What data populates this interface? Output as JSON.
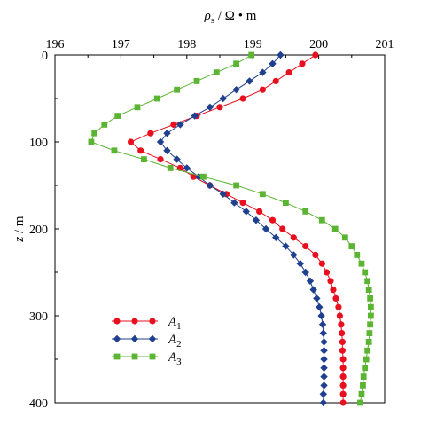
{
  "chart_data": {
    "type": "line",
    "title": "",
    "xlabel": {
      "base": "ρ",
      "sub": "s",
      "rest": " / Ω • m"
    },
    "ylabel": {
      "italic": "z",
      "rest": " / m"
    },
    "xlim": [
      196,
      201
    ],
    "ylim": [
      0,
      400
    ],
    "x_axis_position": "top",
    "y_reversed": true,
    "grid": false,
    "legend_position": "lower-left",
    "x_ticks": [
      "196",
      "197",
      "198",
      "199",
      "200",
      "201"
    ],
    "y_ticks": [
      "0",
      "100",
      "200",
      "300",
      "400"
    ],
    "series": [
      {
        "name": "A1",
        "name_main": "A",
        "name_sub": "1",
        "color": "#e8101e",
        "marker": "circle",
        "points": [
          [
            199.95,
            0
          ],
          [
            199.75,
            10
          ],
          [
            199.55,
            20
          ],
          [
            199.35,
            30
          ],
          [
            199.15,
            40
          ],
          [
            198.85,
            50
          ],
          [
            198.5,
            60
          ],
          [
            198.15,
            70
          ],
          [
            197.8,
            80
          ],
          [
            197.45,
            90
          ],
          [
            197.15,
            100
          ],
          [
            197.3,
            110
          ],
          [
            197.6,
            120
          ],
          [
            197.9,
            130
          ],
          [
            198.1,
            140
          ],
          [
            198.35,
            150
          ],
          [
            198.6,
            160
          ],
          [
            198.85,
            170
          ],
          [
            199.1,
            180
          ],
          [
            199.3,
            190
          ],
          [
            199.45,
            200
          ],
          [
            199.62,
            210
          ],
          [
            199.8,
            220
          ],
          [
            199.95,
            230
          ],
          [
            200.05,
            240
          ],
          [
            200.12,
            250
          ],
          [
            200.18,
            260
          ],
          [
            200.22,
            270
          ],
          [
            200.26,
            280
          ],
          [
            200.3,
            290
          ],
          [
            200.32,
            300
          ],
          [
            200.34,
            310
          ],
          [
            200.35,
            320
          ],
          [
            200.36,
            330
          ],
          [
            200.36,
            340
          ],
          [
            200.37,
            350
          ],
          [
            200.37,
            360
          ],
          [
            200.37,
            370
          ],
          [
            200.37,
            380
          ],
          [
            200.37,
            390
          ],
          [
            200.37,
            400
          ]
        ]
      },
      {
        "name": "A2",
        "name_main": "A",
        "name_sub": "2",
        "color": "#1f3f8f",
        "marker": "diamond",
        "points": [
          [
            199.42,
            0
          ],
          [
            199.3,
            10
          ],
          [
            199.15,
            20
          ],
          [
            198.95,
            30
          ],
          [
            198.75,
            40
          ],
          [
            198.55,
            50
          ],
          [
            198.35,
            60
          ],
          [
            198.12,
            70
          ],
          [
            197.9,
            80
          ],
          [
            197.7,
            90
          ],
          [
            197.6,
            100
          ],
          [
            197.7,
            110
          ],
          [
            197.85,
            120
          ],
          [
            198.0,
            130
          ],
          [
            198.18,
            140
          ],
          [
            198.35,
            150
          ],
          [
            198.55,
            160
          ],
          [
            198.72,
            170
          ],
          [
            198.9,
            180
          ],
          [
            199.05,
            190
          ],
          [
            199.2,
            200
          ],
          [
            199.35,
            210
          ],
          [
            199.5,
            220
          ],
          [
            199.62,
            230
          ],
          [
            199.72,
            240
          ],
          [
            199.8,
            250
          ],
          [
            199.87,
            260
          ],
          [
            199.92,
            270
          ],
          [
            199.97,
            280
          ],
          [
            200.01,
            290
          ],
          [
            200.04,
            300
          ],
          [
            200.06,
            310
          ],
          [
            200.07,
            320
          ],
          [
            200.08,
            330
          ],
          [
            200.08,
            340
          ],
          [
            200.08,
            350
          ],
          [
            200.08,
            360
          ],
          [
            200.08,
            370
          ],
          [
            200.08,
            380
          ],
          [
            200.07,
            390
          ],
          [
            200.07,
            400
          ]
        ]
      },
      {
        "name": "A3",
        "name_main": "A",
        "name_sub": "3",
        "color": "#5bb532",
        "marker": "square",
        "points": [
          [
            198.98,
            0
          ],
          [
            198.75,
            10
          ],
          [
            198.45,
            20
          ],
          [
            198.15,
            30
          ],
          [
            197.85,
            40
          ],
          [
            197.55,
            50
          ],
          [
            197.25,
            60
          ],
          [
            196.95,
            70
          ],
          [
            196.75,
            80
          ],
          [
            196.6,
            90
          ],
          [
            196.55,
            100
          ],
          [
            196.9,
            110
          ],
          [
            197.35,
            120
          ],
          [
            197.75,
            130
          ],
          [
            198.25,
            140
          ],
          [
            198.75,
            150
          ],
          [
            199.15,
            160
          ],
          [
            199.5,
            170
          ],
          [
            199.8,
            180
          ],
          [
            200.05,
            190
          ],
          [
            200.25,
            200
          ],
          [
            200.4,
            210
          ],
          [
            200.5,
            220
          ],
          [
            200.58,
            230
          ],
          [
            200.65,
            240
          ],
          [
            200.7,
            250
          ],
          [
            200.74,
            260
          ],
          [
            200.76,
            270
          ],
          [
            200.78,
            280
          ],
          [
            200.79,
            290
          ],
          [
            200.79,
            300
          ],
          [
            200.78,
            310
          ],
          [
            200.77,
            320
          ],
          [
            200.76,
            330
          ],
          [
            200.74,
            340
          ],
          [
            200.72,
            350
          ],
          [
            200.7,
            360
          ],
          [
            200.68,
            370
          ],
          [
            200.67,
            380
          ],
          [
            200.65,
            390
          ],
          [
            200.63,
            400
          ]
        ]
      }
    ]
  }
}
